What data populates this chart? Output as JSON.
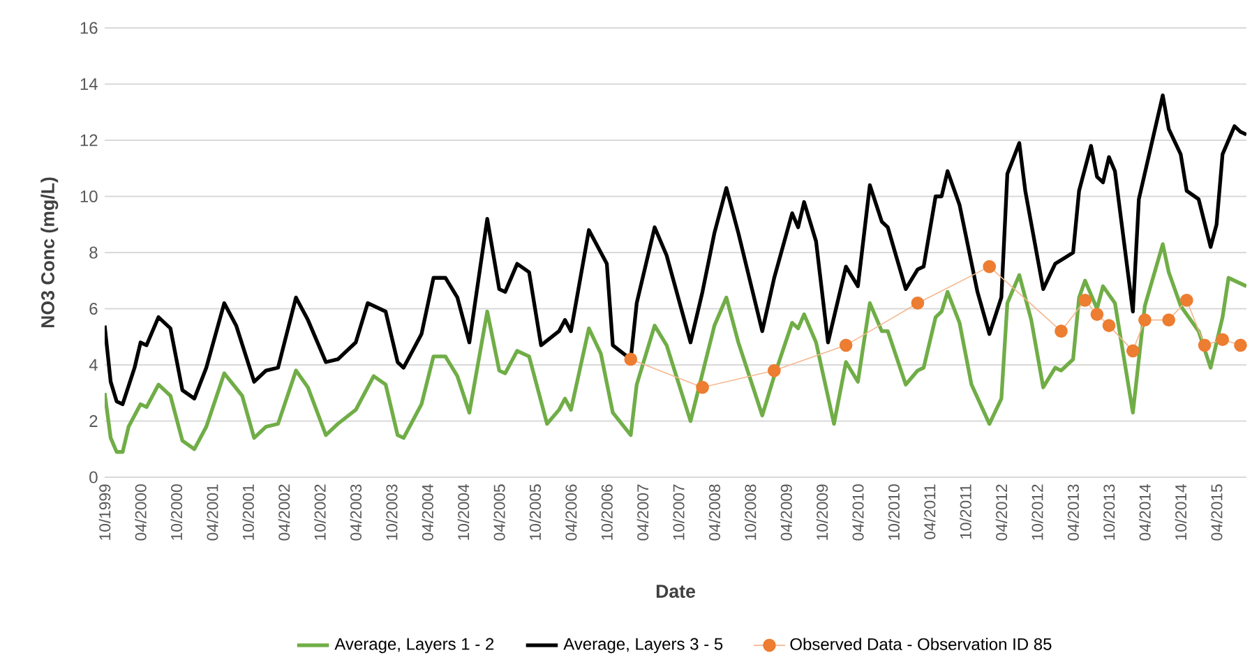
{
  "chart_data": {
    "type": "line",
    "xlabel": "Date",
    "ylabel": "NO3 Conc (mg/L)",
    "xlim": [
      "1999-10",
      "2015-09"
    ],
    "ylim": [
      0,
      16
    ],
    "yticks": [
      0,
      2,
      4,
      6,
      8,
      10,
      12,
      14,
      16
    ],
    "xticks": [
      {
        "value": "1999-10",
        "label": "10/1999"
      },
      {
        "value": "2000-04",
        "label": "04/2000"
      },
      {
        "value": "2000-10",
        "label": "10/2000"
      },
      {
        "value": "2001-04",
        "label": "04/2001"
      },
      {
        "value": "2001-10",
        "label": "10/2001"
      },
      {
        "value": "2002-04",
        "label": "04/2002"
      },
      {
        "value": "2002-10",
        "label": "10/2002"
      },
      {
        "value": "2003-04",
        "label": "04/2003"
      },
      {
        "value": "2003-10",
        "label": "10/2003"
      },
      {
        "value": "2004-04",
        "label": "04/2004"
      },
      {
        "value": "2004-10",
        "label": "10/2004"
      },
      {
        "value": "2005-04",
        "label": "04/2005"
      },
      {
        "value": "2005-10",
        "label": "10/2005"
      },
      {
        "value": "2006-04",
        "label": "04/2006"
      },
      {
        "value": "2006-10",
        "label": "10/2006"
      },
      {
        "value": "2007-04",
        "label": "04/2007"
      },
      {
        "value": "2007-10",
        "label": "10/2007"
      },
      {
        "value": "2008-04",
        "label": "04/2008"
      },
      {
        "value": "2008-10",
        "label": "10/2008"
      },
      {
        "value": "2009-04",
        "label": "04/2009"
      },
      {
        "value": "2009-10",
        "label": "10/2009"
      },
      {
        "value": "2010-04",
        "label": "04/2010"
      },
      {
        "value": "2010-10",
        "label": "10/2010"
      },
      {
        "value": "2011-04",
        "label": "04/2011"
      },
      {
        "value": "2011-10",
        "label": "10/2011"
      },
      {
        "value": "2012-04",
        "label": "04/2012"
      },
      {
        "value": "2012-10",
        "label": "10/2012"
      },
      {
        "value": "2013-04",
        "label": "04/2013"
      },
      {
        "value": "2013-10",
        "label": "10/2013"
      },
      {
        "value": "2014-04",
        "label": "04/2014"
      },
      {
        "value": "2014-10",
        "label": "10/2014"
      },
      {
        "value": "2015-04",
        "label": "04/2015"
      }
    ],
    "grid": "y",
    "legend": "bottom",
    "line_style": "solid",
    "series": [
      {
        "name": "Average, Layers 1 - 2",
        "color": "#70ad47",
        "marker": "none",
        "x": [
          "1999-10",
          "1999-11",
          "1999-12",
          "2000-01",
          "2000-02",
          "2000-04",
          "2000-05",
          "2000-07",
          "2000-09",
          "2000-11",
          "2001-01",
          "2001-03",
          "2001-06",
          "2001-09",
          "2001-11",
          "2002-01",
          "2002-03",
          "2002-06",
          "2002-08",
          "2002-11",
          "2003-01",
          "2003-04",
          "2003-07",
          "2003-09",
          "2003-11",
          "2003-12",
          "2004-03",
          "2004-05",
          "2004-07",
          "2004-09",
          "2004-11",
          "2005-02",
          "2005-04",
          "2005-05",
          "2005-07",
          "2005-09",
          "2005-12",
          "2006-02",
          "2006-03",
          "2006-04",
          "2006-07",
          "2006-09",
          "2006-11",
          "2007-02",
          "2007-03",
          "2007-06",
          "2007-08",
          "2007-12",
          "2008-02",
          "2008-04",
          "2008-06",
          "2008-08",
          "2008-12",
          "2009-02",
          "2009-05",
          "2009-06",
          "2009-07",
          "2009-09",
          "2009-12",
          "2010-02",
          "2010-04",
          "2010-06",
          "2010-08",
          "2010-09",
          "2010-12",
          "2011-02",
          "2011-03",
          "2011-05",
          "2011-06",
          "2011-07",
          "2011-09",
          "2011-11",
          "2012-02",
          "2012-04",
          "2012-05",
          "2012-07",
          "2012-09",
          "2012-11",
          "2013-01",
          "2013-02",
          "2013-04",
          "2013-05",
          "2013-06",
          "2013-08",
          "2013-09",
          "2013-11",
          "2014-02",
          "2014-04",
          "2014-07",
          "2014-08",
          "2014-10",
          "2015-01",
          "2015-03",
          "2015-05",
          "2015-06",
          "2015-09"
        ],
        "values": [
          3.0,
          1.4,
          0.9,
          0.9,
          1.8,
          2.6,
          2.5,
          3.3,
          2.9,
          1.3,
          1.0,
          1.8,
          3.7,
          2.9,
          1.4,
          1.8,
          1.9,
          3.8,
          3.2,
          1.5,
          1.9,
          2.4,
          3.6,
          3.3,
          1.5,
          1.4,
          2.6,
          4.3,
          4.3,
          3.6,
          2.3,
          5.9,
          3.8,
          3.7,
          4.5,
          4.3,
          1.9,
          2.4,
          2.8,
          2.4,
          5.3,
          4.4,
          2.3,
          1.5,
          3.3,
          5.4,
          4.7,
          2.0,
          3.7,
          5.4,
          6.4,
          4.8,
          2.2,
          3.6,
          5.5,
          5.3,
          5.8,
          4.8,
          1.9,
          4.1,
          3.4,
          6.2,
          5.2,
          5.2,
          3.3,
          3.8,
          3.9,
          5.7,
          5.9,
          6.6,
          5.5,
          3.3,
          1.9,
          2.8,
          6.2,
          7.2,
          5.6,
          3.2,
          3.9,
          3.8,
          4.2,
          6.4,
          7.0,
          6.0,
          6.8,
          6.2,
          2.3,
          6.1,
          8.3,
          7.3,
          6.1,
          5.2,
          3.9,
          5.7,
          7.1,
          6.8
        ]
      },
      {
        "name": "Average, Layers 3 - 5",
        "color": "#000000",
        "marker": "none",
        "x": [
          "1999-10",
          "1999-11",
          "1999-12",
          "2000-01",
          "2000-03",
          "2000-04",
          "2000-05",
          "2000-07",
          "2000-09",
          "2000-11",
          "2001-01",
          "2001-03",
          "2001-06",
          "2001-08",
          "2001-11",
          "2002-01",
          "2002-03",
          "2002-06",
          "2002-08",
          "2002-11",
          "2003-01",
          "2003-04",
          "2003-06",
          "2003-09",
          "2003-11",
          "2003-12",
          "2004-03",
          "2004-05",
          "2004-07",
          "2004-09",
          "2004-11",
          "2005-02",
          "2005-04",
          "2005-05",
          "2005-07",
          "2005-09",
          "2005-11",
          "2006-02",
          "2006-03",
          "2006-04",
          "2006-07",
          "2006-10",
          "2006-11",
          "2007-02",
          "2007-03",
          "2007-06",
          "2007-08",
          "2007-12",
          "2008-02",
          "2008-04",
          "2008-06",
          "2008-08",
          "2008-12",
          "2009-02",
          "2009-05",
          "2009-06",
          "2009-07",
          "2009-09",
          "2009-11",
          "2010-02",
          "2010-04",
          "2010-06",
          "2010-08",
          "2010-09",
          "2010-12",
          "2011-02",
          "2011-03",
          "2011-05",
          "2011-06",
          "2011-07",
          "2011-09",
          "2011-12",
          "2012-02",
          "2012-04",
          "2012-05",
          "2012-07",
          "2012-08",
          "2012-11",
          "2013-01",
          "2013-04",
          "2013-05",
          "2013-07",
          "2013-08",
          "2013-09",
          "2013-10",
          "2013-11",
          "2014-02",
          "2014-03",
          "2014-07",
          "2014-08",
          "2014-10",
          "2014-11",
          "2015-01",
          "2015-03",
          "2015-04",
          "2015-05",
          "2015-07",
          "2015-08",
          "2015-09"
        ],
        "values": [
          5.4,
          3.4,
          2.7,
          2.6,
          3.9,
          4.8,
          4.7,
          5.7,
          5.3,
          3.1,
          2.8,
          3.9,
          6.2,
          5.4,
          3.4,
          3.8,
          3.9,
          6.4,
          5.6,
          4.1,
          4.2,
          4.8,
          6.2,
          5.9,
          4.1,
          3.9,
          5.1,
          7.1,
          7.1,
          6.4,
          4.8,
          9.2,
          6.7,
          6.6,
          7.6,
          7.3,
          4.7,
          5.2,
          5.6,
          5.2,
          8.8,
          7.6,
          4.7,
          4.2,
          6.2,
          8.9,
          7.9,
          4.8,
          6.6,
          8.7,
          10.3,
          8.7,
          5.2,
          7.1,
          9.4,
          8.9,
          9.8,
          8.4,
          4.8,
          7.5,
          6.8,
          10.4,
          9.1,
          8.9,
          6.7,
          7.4,
          7.5,
          10.0,
          10.0,
          10.9,
          9.7,
          6.6,
          5.1,
          6.4,
          10.8,
          11.9,
          10.2,
          6.7,
          7.6,
          8.0,
          10.2,
          11.8,
          10.7,
          10.5,
          11.4,
          10.9,
          5.9,
          9.9,
          13.6,
          12.4,
          11.5,
          10.2,
          9.9,
          8.2,
          9.0,
          11.5,
          12.5,
          12.3,
          12.2
        ]
      },
      {
        "name": "Observed Data - Observation ID 85",
        "color": "#ed7d31",
        "marker": "circle",
        "x": [
          "2007-02",
          "2008-02",
          "2009-02",
          "2010-02",
          "2011-02",
          "2012-02",
          "2013-02",
          "2013-06",
          "2013-08",
          "2013-10",
          "2014-02",
          "2014-04",
          "2014-08",
          "2014-11",
          "2015-02",
          "2015-05",
          "2015-08"
        ],
        "values": [
          4.2,
          3.2,
          3.8,
          4.7,
          6.2,
          7.5,
          5.2,
          6.3,
          5.8,
          5.4,
          4.5,
          5.6,
          5.6,
          6.3,
          4.7,
          4.9,
          4.7
        ]
      }
    ]
  }
}
